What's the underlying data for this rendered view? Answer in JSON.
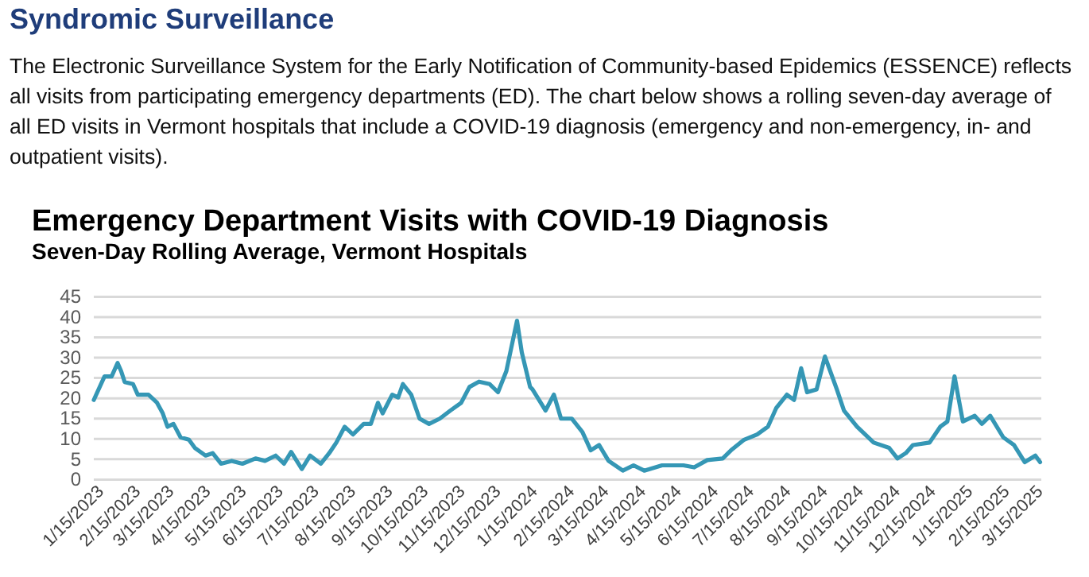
{
  "chart_data": {
    "type": "line",
    "title": "Emergency Department Visits with COVID-19 Diagnosis",
    "subtitle": "Seven-Day Rolling Average, Vermont Hospitals",
    "annotations": [
      "Syndromic Surveillance",
      "The Electronic Surveillance System for the Early Notification of Community-based Epidemics (ESSENCE) reflects all visits from participating emergency departments (ED). The chart below shows a rolling seven-day average of all ED visits in Vermont hospitals that include a COVID-19 diagnosis (emergency and non-emergency, in- and outpatient visits)."
    ],
    "xlim": [
      "2023-01-13",
      "2025-03-20"
    ],
    "xticks": [
      {
        "value": "2023-01-15",
        "label": "1/15/2023"
      },
      {
        "value": "2023-02-15",
        "label": "2/15/2023"
      },
      {
        "value": "2023-03-15",
        "label": "3/15/2023"
      },
      {
        "value": "2023-04-15",
        "label": "4/15/2023"
      },
      {
        "value": "2023-05-15",
        "label": "5/15/2023"
      },
      {
        "value": "2023-06-15",
        "label": "6/15/2023"
      },
      {
        "value": "2023-07-15",
        "label": "7/15/2023"
      },
      {
        "value": "2023-08-15",
        "label": "8/15/2023"
      },
      {
        "value": "2023-09-15",
        "label": "9/15/2023"
      },
      {
        "value": "2023-10-15",
        "label": "10/15/2023"
      },
      {
        "value": "2023-11-15",
        "label": "11/15/2023"
      },
      {
        "value": "2023-12-15",
        "label": "12/15/2023"
      },
      {
        "value": "2024-01-15",
        "label": "1/15/2024"
      },
      {
        "value": "2024-02-15",
        "label": "2/15/2024"
      },
      {
        "value": "2024-03-15",
        "label": "3/15/2024"
      },
      {
        "value": "2024-04-15",
        "label": "4/15/2024"
      },
      {
        "value": "2024-05-15",
        "label": "5/15/2024"
      },
      {
        "value": "2024-06-15",
        "label": "6/15/2024"
      },
      {
        "value": "2024-07-15",
        "label": "7/15/2024"
      },
      {
        "value": "2024-08-15",
        "label": "8/15/2024"
      },
      {
        "value": "2024-09-15",
        "label": "9/15/2024"
      },
      {
        "value": "2024-10-15",
        "label": "10/15/2024"
      },
      {
        "value": "2024-11-15",
        "label": "11/15/2024"
      },
      {
        "value": "2024-12-15",
        "label": "12/15/2024"
      },
      {
        "value": "2025-01-15",
        "label": "1/15/2025"
      },
      {
        "value": "2025-02-15",
        "label": "2/15/2025"
      },
      {
        "value": "2025-03-15",
        "label": "3/15/2025"
      }
    ],
    "ylim": [
      0,
      45
    ],
    "yticks": [
      0,
      5,
      10,
      15,
      20,
      25,
      30,
      35,
      40,
      45
    ],
    "grid": "y",
    "marker": "none",
    "line_style": "solid",
    "series": [
      {
        "color": "#3597b5",
        "x": [
          "2023-01-13",
          "2023-01-22",
          "2023-01-28",
          "2023-02-02",
          "2023-02-05",
          "2023-02-08",
          "2023-02-15",
          "2023-02-19",
          "2023-02-28",
          "2023-03-07",
          "2023-03-12",
          "2023-03-16",
          "2023-03-21",
          "2023-03-27",
          "2023-04-03",
          "2023-04-08",
          "2023-04-17",
          "2023-04-23",
          "2023-04-30",
          "2023-05-09",
          "2023-05-18",
          "2023-05-29",
          "2023-06-06",
          "2023-06-15",
          "2023-06-22",
          "2023-06-28",
          "2023-07-07",
          "2023-07-14",
          "2023-07-23",
          "2023-07-30",
          "2023-08-05",
          "2023-08-12",
          "2023-08-19",
          "2023-08-28",
          "2023-09-03",
          "2023-09-09",
          "2023-09-13",
          "2023-09-21",
          "2023-09-26",
          "2023-09-30",
          "2023-10-07",
          "2023-10-14",
          "2023-10-22",
          "2023-10-31",
          "2023-11-09",
          "2023-11-18",
          "2023-11-25",
          "2023-12-03",
          "2023-12-12",
          "2023-12-19",
          "2023-12-26",
          "2024-01-04",
          "2024-01-08",
          "2024-01-15",
          "2024-01-17",
          "2024-01-28",
          "2024-02-04",
          "2024-02-10",
          "2024-02-19",
          "2024-02-28",
          "2024-03-06",
          "2024-03-13",
          "2024-03-21",
          "2024-04-02",
          "2024-04-11",
          "2024-04-20",
          "2024-05-05",
          "2024-05-23",
          "2024-06-01",
          "2024-06-12",
          "2024-06-25",
          "2024-07-02",
          "2024-07-13",
          "2024-07-24",
          "2024-08-02",
          "2024-08-09",
          "2024-08-18",
          "2024-08-24",
          "2024-08-30",
          "2024-09-04",
          "2024-09-12",
          "2024-09-19",
          "2024-09-29",
          "2024-10-05",
          "2024-10-16",
          "2024-10-30",
          "2024-11-12",
          "2024-11-19",
          "2024-11-26",
          "2024-12-02",
          "2024-12-16",
          "2024-12-25",
          "2024-12-31",
          "2025-01-06",
          "2025-01-13",
          "2025-01-23",
          "2025-01-29",
          "2025-02-05",
          "2025-02-16",
          "2025-02-25",
          "2025-03-06",
          "2025-03-15",
          "2025-03-19"
        ],
        "values": [
          19.6,
          25.4,
          25.4,
          28.7,
          26.7,
          24,
          23.5,
          20.9,
          20.9,
          19,
          16.3,
          13,
          13.7,
          10.4,
          9.8,
          7.8,
          5.9,
          6.5,
          3.9,
          4.6,
          3.9,
          5.2,
          4.6,
          5.9,
          3.9,
          6.8,
          2.6,
          5.9,
          3.9,
          6.5,
          9.1,
          13,
          11.1,
          13.7,
          13.7,
          18.9,
          16.3,
          20.9,
          20.2,
          23.5,
          20.9,
          15,
          13.7,
          15,
          17,
          18.9,
          22.8,
          24.1,
          23.5,
          21.5,
          26.7,
          39.1,
          31.3,
          22.8,
          22.2,
          17,
          20.9,
          15,
          15,
          11.7,
          7.2,
          8.5,
          4.6,
          2.2,
          3.5,
          2.2,
          3.5,
          3.5,
          3,
          4.8,
          5.2,
          7.2,
          9.8,
          11.1,
          13,
          17.6,
          20.9,
          19.6,
          27.4,
          21.5,
          22.2,
          30.3,
          22.2,
          17,
          13,
          9.1,
          7.8,
          5.2,
          6.5,
          8.5,
          9.1,
          13,
          14.3,
          25.4,
          14.3,
          15.7,
          13.7,
          15.7,
          10.4,
          8.5,
          4.3,
          5.9,
          4.3
        ]
      }
    ]
  }
}
